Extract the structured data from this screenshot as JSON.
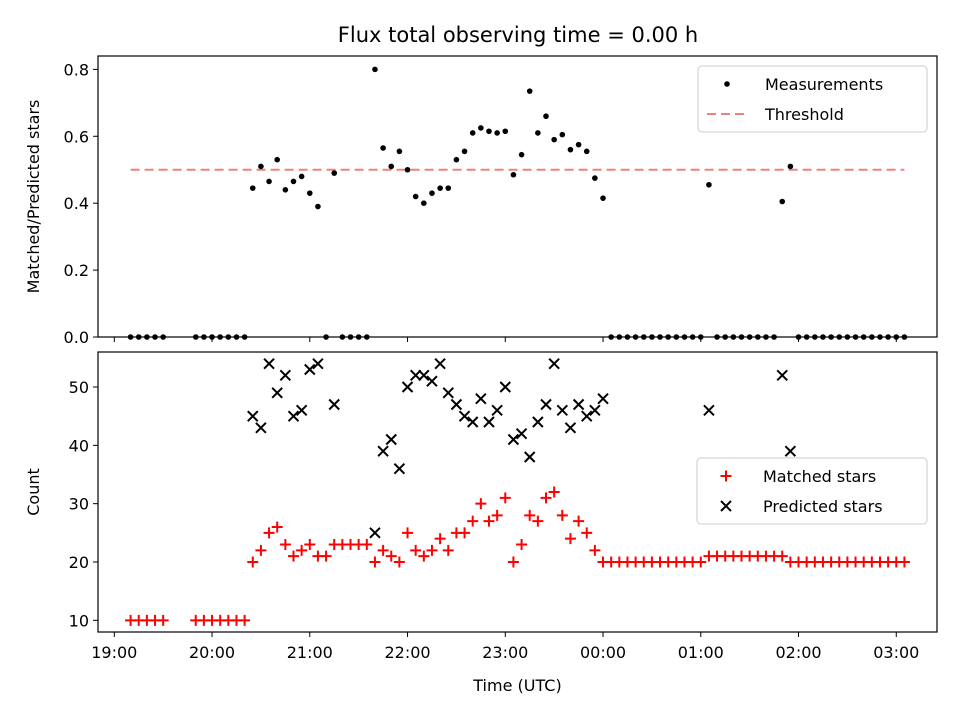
{
  "title": "Flux total observing time = 0.00 h",
  "colors": {
    "measurements": "#000000",
    "threshold": "#f08080",
    "matched": "#ff0000",
    "predicted": "#000000"
  },
  "chart_data": [
    {
      "type": "scatter",
      "panel": "top",
      "ylabel": "Matched/Predicted stars",
      "xlabel": "",
      "x_unit": "time",
      "xlim": [
        "18:50",
        "03:25"
      ],
      "ylim": [
        0,
        0.84
      ],
      "yticks": [
        0.0,
        0.2,
        0.4,
        0.6,
        0.8
      ],
      "ytick_labels": [
        "0.0",
        "0.2",
        "0.4",
        "0.6",
        "0.8"
      ],
      "legend": {
        "placement": "upper right",
        "entries": [
          "Measurements",
          "Threshold"
        ]
      },
      "threshold": {
        "name": "Threshold",
        "y": 0.5,
        "x_range": [
          "19:10",
          "03:05"
        ]
      },
      "series": [
        {
          "name": "Measurements",
          "points": [
            [
              "19:10",
              0
            ],
            [
              "19:15",
              0
            ],
            [
              "19:20",
              0
            ],
            [
              "19:25",
              0
            ],
            [
              "19:30",
              0
            ],
            [
              "19:50",
              0
            ],
            [
              "19:55",
              0
            ],
            [
              "20:00",
              0
            ],
            [
              "20:05",
              0
            ],
            [
              "20:10",
              0
            ],
            [
              "20:15",
              0
            ],
            [
              "20:20",
              0
            ],
            [
              "20:25",
              0.445
            ],
            [
              "20:30",
              0.51
            ],
            [
              "20:35",
              0.465
            ],
            [
              "20:40",
              0.53
            ],
            [
              "20:45",
              0.44
            ],
            [
              "20:50",
              0.465
            ],
            [
              "20:55",
              0.48
            ],
            [
              "21:00",
              0.43
            ],
            [
              "21:05",
              0.39
            ],
            [
              "21:10",
              0
            ],
            [
              "21:15",
              0.49
            ],
            [
              "21:20",
              0
            ],
            [
              "21:25",
              0
            ],
            [
              "21:30",
              0
            ],
            [
              "21:35",
              0
            ],
            [
              "21:40",
              0.8
            ],
            [
              "21:45",
              0.565
            ],
            [
              "21:50",
              0.51
            ],
            [
              "21:55",
              0.555
            ],
            [
              "22:00",
              0.5
            ],
            [
              "22:05",
              0.42
            ],
            [
              "22:10",
              0.4
            ],
            [
              "22:15",
              0.43
            ],
            [
              "22:20",
              0.445
            ],
            [
              "22:25",
              0.445
            ],
            [
              "22:30",
              0.53
            ],
            [
              "22:35",
              0.555
            ],
            [
              "22:40",
              0.61
            ],
            [
              "22:45",
              0.625
            ],
            [
              "22:50",
              0.615
            ],
            [
              "22:55",
              0.61
            ],
            [
              "23:00",
              0.615
            ],
            [
              "23:05",
              0.485
            ],
            [
              "23:10",
              0.545
            ],
            [
              "23:15",
              0.735
            ],
            [
              "23:20",
              0.61
            ],
            [
              "23:25",
              0.66
            ],
            [
              "23:30",
              0.59
            ],
            [
              "23:35",
              0.605
            ],
            [
              "23:40",
              0.56
            ],
            [
              "23:45",
              0.575
            ],
            [
              "23:50",
              0.555
            ],
            [
              "23:55",
              0.475
            ],
            [
              "00:00",
              0.415
            ],
            [
              "00:05",
              0
            ],
            [
              "00:10",
              0
            ],
            [
              "00:15",
              0
            ],
            [
              "00:20",
              0
            ],
            [
              "00:25",
              0
            ],
            [
              "00:30",
              0
            ],
            [
              "00:35",
              0
            ],
            [
              "00:40",
              0
            ],
            [
              "00:45",
              0
            ],
            [
              "00:50",
              0
            ],
            [
              "00:55",
              0
            ],
            [
              "01:00",
              0
            ],
            [
              "01:05",
              0.455
            ],
            [
              "01:10",
              0
            ],
            [
              "01:15",
              0
            ],
            [
              "01:20",
              0
            ],
            [
              "01:25",
              0
            ],
            [
              "01:30",
              0
            ],
            [
              "01:35",
              0
            ],
            [
              "01:40",
              0
            ],
            [
              "01:45",
              0
            ],
            [
              "01:50",
              0.405
            ],
            [
              "01:55",
              0.51
            ],
            [
              "02:00",
              0
            ],
            [
              "02:05",
              0
            ],
            [
              "02:10",
              0
            ],
            [
              "02:15",
              0
            ],
            [
              "02:20",
              0
            ],
            [
              "02:25",
              0
            ],
            [
              "02:30",
              0
            ],
            [
              "02:35",
              0
            ],
            [
              "02:40",
              0
            ],
            [
              "02:45",
              0
            ],
            [
              "02:50",
              0
            ],
            [
              "02:55",
              0
            ],
            [
              "03:00",
              0
            ],
            [
              "03:05",
              0
            ]
          ]
        }
      ]
    },
    {
      "type": "scatter",
      "panel": "bottom",
      "ylabel": "Count",
      "xlabel": "Time (UTC)",
      "x_unit": "time",
      "xlim": [
        "18:50",
        "03:25"
      ],
      "ylim": [
        8,
        56
      ],
      "yticks": [
        10,
        20,
        30,
        40,
        50
      ],
      "ytick_labels": [
        "10",
        "20",
        "30",
        "40",
        "50"
      ],
      "xticks": [
        "19:00",
        "20:00",
        "21:00",
        "22:00",
        "23:00",
        "00:00",
        "01:00",
        "02:00",
        "03:00"
      ],
      "xtick_labels": [
        "19:00",
        "20:00",
        "21:00",
        "22:00",
        "23:00",
        "00:00",
        "01:00",
        "02:00",
        "03:00"
      ],
      "legend": {
        "placement": "center right",
        "entries": [
          "Matched stars",
          "Predicted stars"
        ]
      },
      "series": [
        {
          "name": "Matched stars",
          "marker": "plus",
          "points": [
            [
              "19:10",
              10
            ],
            [
              "19:15",
              10
            ],
            [
              "19:20",
              10
            ],
            [
              "19:25",
              10
            ],
            [
              "19:30",
              10
            ],
            [
              "19:50",
              10
            ],
            [
              "19:55",
              10
            ],
            [
              "20:00",
              10
            ],
            [
              "20:05",
              10
            ],
            [
              "20:10",
              10
            ],
            [
              "20:15",
              10
            ],
            [
              "20:20",
              10
            ],
            [
              "20:25",
              20
            ],
            [
              "20:30",
              22
            ],
            [
              "20:35",
              25
            ],
            [
              "20:40",
              26
            ],
            [
              "20:45",
              23
            ],
            [
              "20:50",
              21
            ],
            [
              "20:55",
              22
            ],
            [
              "21:00",
              23
            ],
            [
              "21:05",
              21
            ],
            [
              "21:10",
              21
            ],
            [
              "21:15",
              23
            ],
            [
              "21:20",
              23
            ],
            [
              "21:25",
              23
            ],
            [
              "21:30",
              23
            ],
            [
              "21:35",
              23
            ],
            [
              "21:40",
              20
            ],
            [
              "21:45",
              22
            ],
            [
              "21:50",
              21
            ],
            [
              "21:55",
              20
            ],
            [
              "22:00",
              25
            ],
            [
              "22:05",
              22
            ],
            [
              "22:10",
              21
            ],
            [
              "22:15",
              22
            ],
            [
              "22:20",
              24
            ],
            [
              "22:25",
              22
            ],
            [
              "22:30",
              25
            ],
            [
              "22:35",
              25
            ],
            [
              "22:40",
              27
            ],
            [
              "22:45",
              30
            ],
            [
              "22:50",
              27
            ],
            [
              "22:55",
              28
            ],
            [
              "23:00",
              31
            ],
            [
              "23:05",
              20
            ],
            [
              "23:10",
              23
            ],
            [
              "23:15",
              28
            ],
            [
              "23:20",
              27
            ],
            [
              "23:25",
              31
            ],
            [
              "23:30",
              32
            ],
            [
              "23:35",
              28
            ],
            [
              "23:40",
              24
            ],
            [
              "23:45",
              27
            ],
            [
              "23:50",
              25
            ],
            [
              "23:55",
              22
            ],
            [
              "00:00",
              20
            ],
            [
              "00:05",
              20
            ],
            [
              "00:10",
              20
            ],
            [
              "00:15",
              20
            ],
            [
              "00:20",
              20
            ],
            [
              "00:25",
              20
            ],
            [
              "00:30",
              20
            ],
            [
              "00:35",
              20
            ],
            [
              "00:40",
              20
            ],
            [
              "00:45",
              20
            ],
            [
              "00:50",
              20
            ],
            [
              "00:55",
              20
            ],
            [
              "01:00",
              20
            ],
            [
              "01:05",
              21
            ],
            [
              "01:10",
              21
            ],
            [
              "01:15",
              21
            ],
            [
              "01:20",
              21
            ],
            [
              "01:25",
              21
            ],
            [
              "01:30",
              21
            ],
            [
              "01:35",
              21
            ],
            [
              "01:40",
              21
            ],
            [
              "01:45",
              21
            ],
            [
              "01:50",
              21
            ],
            [
              "01:55",
              20
            ],
            [
              "02:00",
              20
            ],
            [
              "02:05",
              20
            ],
            [
              "02:10",
              20
            ],
            [
              "02:15",
              20
            ],
            [
              "02:20",
              20
            ],
            [
              "02:25",
              20
            ],
            [
              "02:30",
              20
            ],
            [
              "02:35",
              20
            ],
            [
              "02:40",
              20
            ],
            [
              "02:45",
              20
            ],
            [
              "02:50",
              20
            ],
            [
              "02:55",
              20
            ],
            [
              "03:00",
              20
            ],
            [
              "03:05",
              20
            ]
          ]
        },
        {
          "name": "Predicted stars",
          "marker": "x",
          "points": [
            [
              "20:25",
              45
            ],
            [
              "20:30",
              43
            ],
            [
              "20:35",
              54
            ],
            [
              "20:40",
              49
            ],
            [
              "20:45",
              52
            ],
            [
              "20:50",
              45
            ],
            [
              "20:55",
              46
            ],
            [
              "21:00",
              53
            ],
            [
              "21:05",
              54
            ],
            [
              "21:15",
              47
            ],
            [
              "21:40",
              25
            ],
            [
              "21:45",
              39
            ],
            [
              "21:50",
              41
            ],
            [
              "21:55",
              36
            ],
            [
              "22:00",
              50
            ],
            [
              "22:05",
              52
            ],
            [
              "22:10",
              52
            ],
            [
              "22:15",
              51
            ],
            [
              "22:20",
              54
            ],
            [
              "22:25",
              49
            ],
            [
              "22:30",
              47
            ],
            [
              "22:35",
              45
            ],
            [
              "22:40",
              44
            ],
            [
              "22:45",
              48
            ],
            [
              "22:50",
              44
            ],
            [
              "22:55",
              46
            ],
            [
              "23:00",
              50
            ],
            [
              "23:05",
              41
            ],
            [
              "23:10",
              42
            ],
            [
              "23:15",
              38
            ],
            [
              "23:20",
              44
            ],
            [
              "23:25",
              47
            ],
            [
              "23:30",
              54
            ],
            [
              "23:35",
              46
            ],
            [
              "23:40",
              43
            ],
            [
              "23:45",
              47
            ],
            [
              "23:50",
              45
            ],
            [
              "23:55",
              46
            ],
            [
              "00:00",
              48
            ],
            [
              "01:05",
              46
            ],
            [
              "01:50",
              52
            ],
            [
              "01:55",
              39
            ]
          ]
        }
      ]
    }
  ]
}
